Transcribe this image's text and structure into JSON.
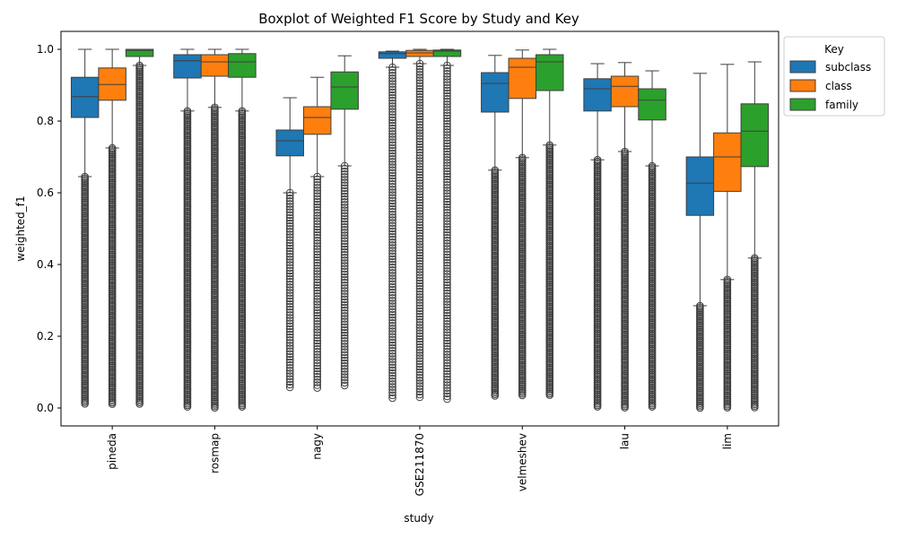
{
  "chart_data": {
    "type": "boxplot",
    "title": "Boxplot of Weighted F1 Score by Study and Key",
    "xlabel": "study",
    "ylabel": "weighted_f1",
    "ylim": [
      -0.05,
      1.05
    ],
    "yticks": [
      "0.0",
      "0.2",
      "0.4",
      "0.6",
      "0.8",
      "1.0"
    ],
    "ytick_values": [
      0.0,
      0.2,
      0.4,
      0.6,
      0.8,
      1.0
    ],
    "categories": [
      "pineda",
      "rosmap",
      "nagy",
      "GSE211870",
      "velmeshev",
      "lau",
      "lim"
    ],
    "legend": {
      "title": "Key",
      "position": "upper-right-outside"
    },
    "grid": false,
    "series": [
      {
        "name": "subclass",
        "color": "#1f77b4",
        "boxes": [
          {
            "whislo": 0.645,
            "q1": 0.81,
            "med": 0.868,
            "q3": 0.922,
            "whishi": 1.0,
            "fliers": {
              "min": 0.01,
              "max": 0.645,
              "dense": true
            }
          },
          {
            "whislo": 0.828,
            "q1": 0.92,
            "med": 0.968,
            "q3": 0.985,
            "whishi": 1.0,
            "fliers": {
              "min": 0.0,
              "max": 0.828,
              "dense": true
            }
          },
          {
            "whislo": 0.6,
            "q1": 0.703,
            "med": 0.745,
            "q3": 0.775,
            "whishi": 0.865,
            "fliers": {
              "min": 0.052,
              "max": 0.6,
              "dense": false
            }
          },
          {
            "whislo": 0.95,
            "q1": 0.975,
            "med": 0.988,
            "q3": 0.993,
            "whishi": 0.995,
            "fliers": {
              "min": 0.022,
              "max": 0.95,
              "dense": false
            }
          },
          {
            "whislo": 0.663,
            "q1": 0.825,
            "med": 0.905,
            "q3": 0.935,
            "whishi": 0.983,
            "fliers": {
              "min": 0.03,
              "max": 0.663,
              "dense": true
            }
          },
          {
            "whislo": 0.692,
            "q1": 0.828,
            "med": 0.89,
            "q3": 0.918,
            "whishi": 0.96,
            "fliers": {
              "min": 0.0,
              "max": 0.692,
              "dense": true
            }
          },
          {
            "whislo": 0.285,
            "q1": 0.537,
            "med": 0.627,
            "q3": 0.7,
            "whishi": 0.933,
            "fliers": {
              "min": 0.0,
              "max": 0.285,
              "dense": true
            }
          }
        ]
      },
      {
        "name": "class",
        "color": "#ff7f0e",
        "boxes": [
          {
            "whislo": 0.725,
            "q1": 0.858,
            "med": 0.902,
            "q3": 0.948,
            "whishi": 1.0,
            "fliers": {
              "min": 0.01,
              "max": 0.725,
              "dense": true
            }
          },
          {
            "whislo": 0.838,
            "q1": 0.925,
            "med": 0.965,
            "q3": 0.985,
            "whishi": 1.0,
            "fliers": {
              "min": 0.0,
              "max": 0.838,
              "dense": true
            }
          },
          {
            "whislo": 0.645,
            "q1": 0.763,
            "med": 0.81,
            "q3": 0.84,
            "whishi": 0.922,
            "fliers": {
              "min": 0.055,
              "max": 0.645,
              "dense": false
            }
          },
          {
            "whislo": 0.96,
            "q1": 0.98,
            "med": 0.99,
            "q3": 0.997,
            "whishi": 1.0,
            "fliers": {
              "min": 0.025,
              "max": 0.96,
              "dense": false
            }
          },
          {
            "whislo": 0.698,
            "q1": 0.863,
            "med": 0.95,
            "q3": 0.975,
            "whishi": 0.998,
            "fliers": {
              "min": 0.033,
              "max": 0.698,
              "dense": true
            }
          },
          {
            "whislo": 0.715,
            "q1": 0.84,
            "med": 0.897,
            "q3": 0.925,
            "whishi": 0.963,
            "fliers": {
              "min": 0.0,
              "max": 0.715,
              "dense": true
            }
          },
          {
            "whislo": 0.358,
            "q1": 0.604,
            "med": 0.7,
            "q3": 0.767,
            "whishi": 0.958,
            "fliers": {
              "min": 0.0,
              "max": 0.358,
              "dense": true
            }
          }
        ]
      },
      {
        "name": "family",
        "color": "#2ca02c",
        "boxes": [
          {
            "whislo": 0.955,
            "q1": 0.98,
            "med": 0.997,
            "q3": 1.0,
            "whishi": 1.0,
            "fliers": {
              "min": 0.01,
              "max": 0.955,
              "dense": true
            }
          },
          {
            "whislo": 0.828,
            "q1": 0.922,
            "med": 0.965,
            "q3": 0.988,
            "whishi": 1.0,
            "fliers": {
              "min": 0.0,
              "max": 0.828,
              "dense": true
            }
          },
          {
            "whislo": 0.675,
            "q1": 0.833,
            "med": 0.895,
            "q3": 0.937,
            "whishi": 0.982,
            "fliers": {
              "min": 0.058,
              "max": 0.675,
              "dense": false
            }
          },
          {
            "whislo": 0.955,
            "q1": 0.98,
            "med": 0.995,
            "q3": 0.998,
            "whishi": 1.0,
            "fliers": {
              "min": 0.025,
              "max": 0.955,
              "dense": false
            }
          },
          {
            "whislo": 0.733,
            "q1": 0.885,
            "med": 0.965,
            "q3": 0.985,
            "whishi": 1.0,
            "fliers": {
              "min": 0.033,
              "max": 0.733,
              "dense": true
            }
          },
          {
            "whislo": 0.675,
            "q1": 0.803,
            "med": 0.858,
            "q3": 0.89,
            "whishi": 0.94,
            "fliers": {
              "min": 0.0,
              "max": 0.675,
              "dense": true
            }
          },
          {
            "whislo": 0.418,
            "q1": 0.673,
            "med": 0.772,
            "q3": 0.848,
            "whishi": 0.965,
            "fliers": {
              "min": 0.0,
              "max": 0.418,
              "dense": true
            }
          }
        ]
      }
    ]
  }
}
